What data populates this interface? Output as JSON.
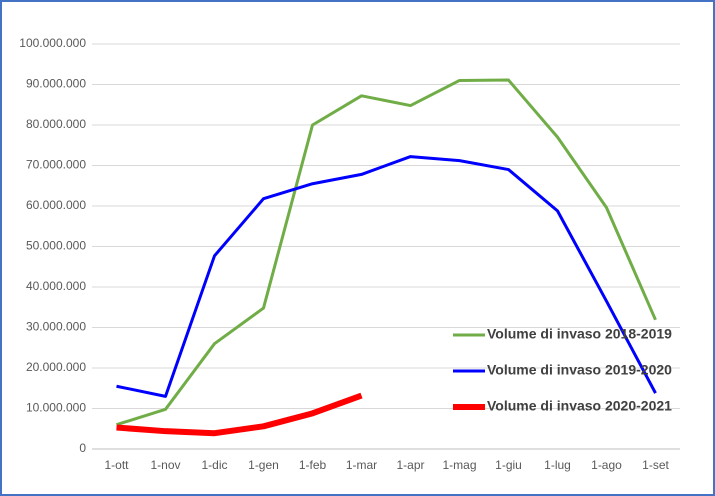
{
  "chart_data": {
    "type": "line",
    "categories": [
      "1-ott",
      "1-nov",
      "1-dic",
      "1-gen",
      "1-feb",
      "1-mar",
      "1-apr",
      "1-mag",
      "1-giu",
      "1-lug",
      "1-ago",
      "1-set"
    ],
    "series": [
      {
        "name": "Volume di invaso 2018-2019",
        "color": "#70ad47",
        "width": 3,
        "values": [
          6000000,
          9800000,
          26000000,
          34800000,
          80000000,
          87200000,
          84800000,
          91000000,
          91100000,
          77000000,
          59600000,
          31900000
        ]
      },
      {
        "name": "Volume di invaso 2019-2020",
        "color": "#0000ff",
        "width": 3,
        "values": [
          15500000,
          13000000,
          47700000,
          61800000,
          65500000,
          67800000,
          72200000,
          71200000,
          69000000,
          58800000,
          36500000,
          13800000
        ]
      },
      {
        "name": "Volume di invaso 2020-2021",
        "color": "#ff0000",
        "width": 6,
        "values": [
          5300000,
          4400000,
          3900000,
          5600000,
          8800000,
          13200000,
          null,
          null,
          null,
          null,
          null,
          null
        ]
      }
    ],
    "ylim": [
      0,
      100000000
    ],
    "yticks": [
      0,
      {
        "value": 10000000,
        "label": "10.000.000"
      },
      {
        "value": 20000000,
        "label": "20.000.000"
      },
      {
        "value": 30000000,
        "label": "30.000.000"
      },
      {
        "value": 40000000,
        "label": "40.000.000"
      },
      {
        "value": 50000000,
        "label": "50.000.000"
      },
      {
        "value": 60000000,
        "label": "60.000.000"
      },
      {
        "value": 70000000,
        "label": "70.000.000"
      },
      {
        "value": 80000000,
        "label": "80.000.000"
      },
      {
        "value": 90000000,
        "label": "90.000.000"
      },
      {
        "value": 100000000,
        "label": "100.000.000"
      }
    ],
    "grid": true,
    "legend": "lower right"
  }
}
